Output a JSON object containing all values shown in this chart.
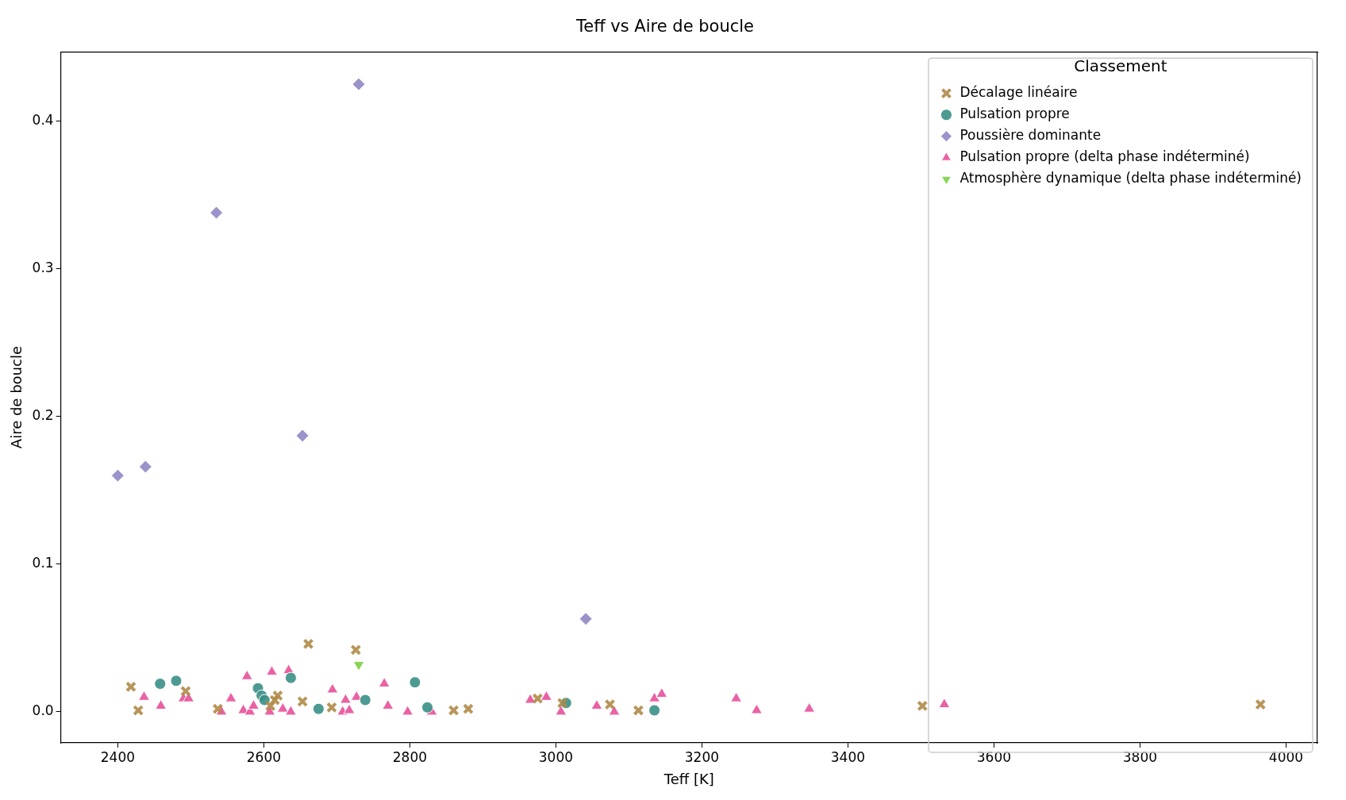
{
  "chart_data": {
    "type": "scatter",
    "title": "Teff vs Aire de boucle",
    "xlabel": "Teff [K]",
    "ylabel": "Aire de boucle",
    "legend_title": "Classement",
    "legend": "top right",
    "grid": false,
    "xlim": [
      2322,
      4043
    ],
    "ylim": [
      -0.021,
      0.447
    ],
    "xticks": [
      2400,
      2600,
      2800,
      3000,
      3200,
      3400,
      3600,
      3800,
      4000
    ],
    "yticks": [
      {
        "value": 0,
        "label": "0.0"
      },
      {
        "value": 0.1,
        "label": "0.1"
      },
      {
        "value": 0.2,
        "label": "0.2"
      },
      {
        "value": 0.3,
        "label": "0.3"
      },
      {
        "value": 0.4,
        "label": "0.4"
      }
    ],
    "series": [
      {
        "name": "Décalage linéaire",
        "color": "#b08a48",
        "marker": "cross",
        "x": [
          2418,
          2428,
          2493,
          2537,
          2619,
          2609,
          2615,
          2653,
          2661,
          2693,
          2726,
          2860,
          2880,
          2975,
          3009,
          3074,
          3113,
          3502,
          3965
        ],
        "values": [
          0.017,
          0.001,
          0.014,
          0.002,
          0.011,
          0.004,
          0.008,
          0.007,
          0.046,
          0.003,
          0.042,
          0.001,
          0.002,
          0.009,
          0.006,
          0.005,
          0.001,
          0.004,
          0.005
        ]
      },
      {
        "name": "Pulsation propre",
        "color": "#3a8f87",
        "marker": "circle",
        "x": [
          2458,
          2480,
          2592,
          2597,
          2601,
          2637,
          2675,
          2739,
          2807,
          2824,
          3014,
          3135
        ],
        "values": [
          0.019,
          0.021,
          0.016,
          0.011,
          0.008,
          0.023,
          0.002,
          0.008,
          0.02,
          0.003,
          0.006,
          0.001
        ]
      },
      {
        "name": "Poussière dominante",
        "color": "#8f88c4",
        "marker": "diamond",
        "x": [
          2400,
          2438,
          2535,
          2653,
          2730,
          3041
        ],
        "values": [
          0.16,
          0.166,
          0.338,
          0.187,
          0.425,
          0.063
        ]
      },
      {
        "name": "Pulsation propre (delta phase indéterminé)",
        "color": "#e8509a",
        "marker": "triangle",
        "x": [
          2436,
          2459,
          2490,
          2497,
          2542,
          2555,
          2572,
          2577,
          2581,
          2586,
          2608,
          2611,
          2626,
          2634,
          2637,
          2694,
          2708,
          2712,
          2717,
          2727,
          2765,
          2770,
          2797,
          2830,
          2965,
          2987,
          3007,
          3056,
          3080,
          3135,
          3145,
          3247,
          3275,
          3347,
          3532
        ],
        "values": [
          0.01,
          0.004,
          0.009,
          0.009,
          0.0,
          0.009,
          0.001,
          0.024,
          0.0,
          0.004,
          0.0,
          0.027,
          0.002,
          0.028,
          0.0,
          0.015,
          0.0,
          0.008,
          0.001,
          0.01,
          0.019,
          0.004,
          0.0,
          0.0,
          0.008,
          0.01,
          0.0,
          0.004,
          0.0,
          0.009,
          0.012,
          0.009,
          0.001,
          0.002,
          0.005
        ]
      },
      {
        "name": "Atmosphère dynamique (delta phase indéterminé)",
        "color": "#7ccf45",
        "marker": "triangle_down",
        "x": [
          2730
        ],
        "values": [
          0.032
        ]
      }
    ]
  }
}
